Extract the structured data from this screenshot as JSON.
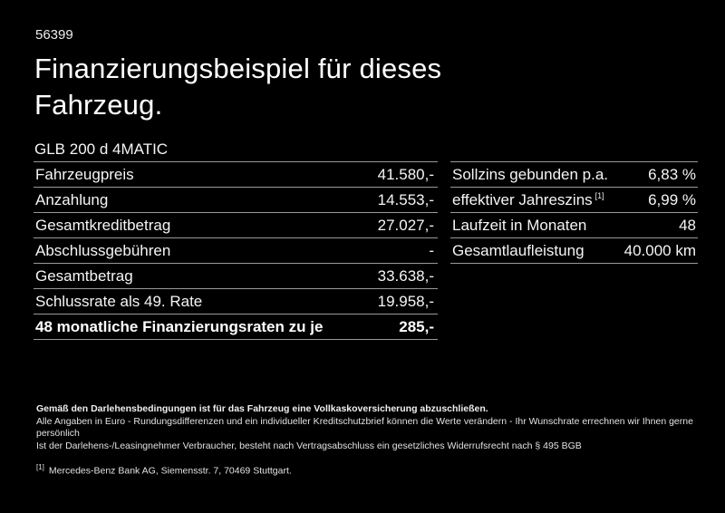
{
  "page": {
    "doc_number": "56399",
    "title_line1": "Finanzierungsbeispiel für dieses",
    "title_line2": "Fahrzeug.",
    "vehicle_name": "GLB 200 d 4MATIC"
  },
  "finance_table": {
    "rows": [
      {
        "label": "Fahrzeugpreis",
        "value": "41.580,-"
      },
      {
        "label": "Anzahlung",
        "value": "14.553,-"
      },
      {
        "label": "Gesamtkreditbetrag",
        "value": "27.027,-"
      },
      {
        "label": "Abschlussgebühren",
        "value": "-"
      },
      {
        "label": "Gesamtbetrag",
        "value": "33.638,-"
      },
      {
        "label": "Schlussrate als 49. Rate",
        "value": "19.958,-"
      },
      {
        "label": "48 monatliche Finanzierungsraten zu je",
        "value": "285,-"
      }
    ]
  },
  "conditions_table": {
    "rows": [
      {
        "label": "Sollzins gebunden p.a.",
        "value": "6,83 %"
      },
      {
        "label": "effektiver Jahreszins",
        "label_sup": "[1]",
        "value": "6,99 %"
      },
      {
        "label": "Laufzeit in Monaten",
        "value": "48"
      },
      {
        "label": "Gesamtlaufleistung",
        "value": "40.000 km"
      }
    ]
  },
  "footnotes": {
    "line1": "Gemäß den Darlehensbedingungen ist für das Fahrzeug eine Vollkaskoversicherung abzuschließen.",
    "line2": "Alle Angaben in Euro - Rundungsdifferenzen und ein individueller Kreditschutzbrief können die Werte verändern - Ihr Wunschrate errechnen wir Ihnen gerne persönlich",
    "line3": "Ist der Darlehens-/Leasingnehmer Verbraucher, besteht nach Vertragsabschluss ein gesetzliches Widerrufsrecht nach § 495 BGB",
    "ref_marker": "[1]",
    "ref_text": "Mercedes-Benz Bank AG, Siemensstr. 7, 70469 Stuttgart."
  },
  "colors": {
    "background": "#000000",
    "text": "#f5f5f5",
    "divider": "#999999"
  }
}
